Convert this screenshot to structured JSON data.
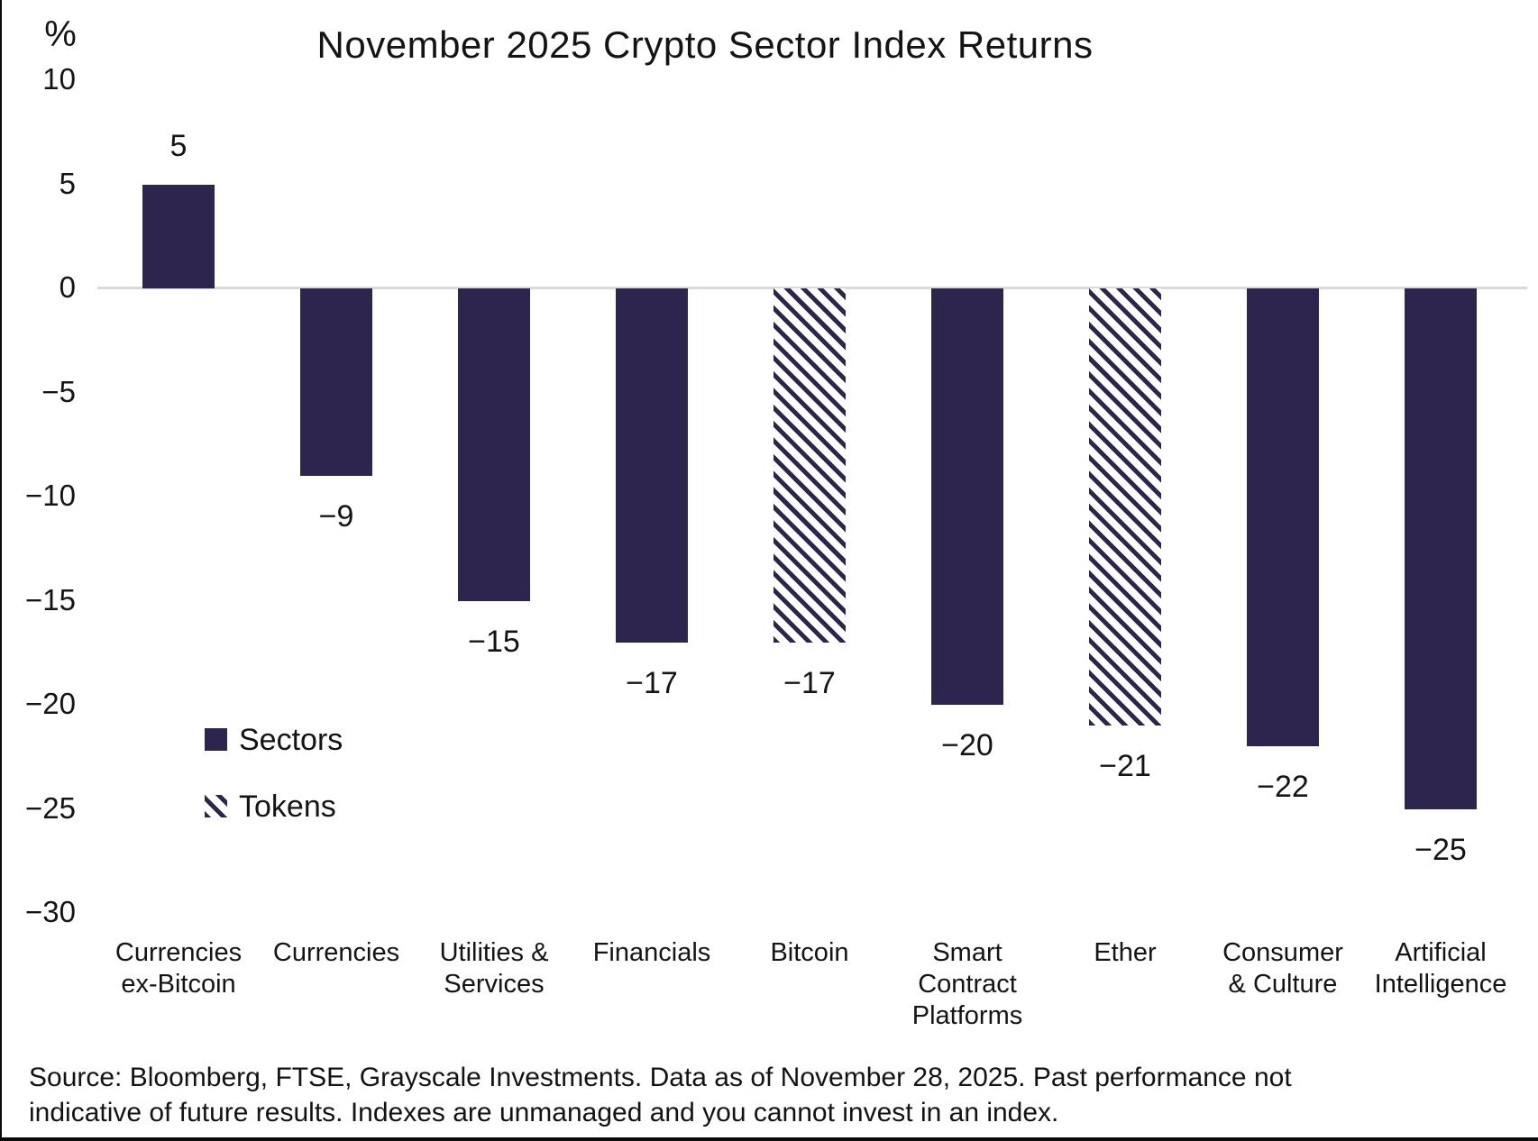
{
  "title": "November 2025 Crypto Sector Index Returns",
  "source": {
    "lines": [
      "Source: Bloomberg, FTSE, Grayscale Investments. Data as of November 28, 2025. Past performance not",
      "indicative of future results. Indexes are unmanaged and you cannot invest in an index."
    ]
  },
  "colors": {
    "bar_navy": "#2d254d",
    "zero_line_gray": "#d9d9d9",
    "text": "#141414",
    "frame_border": "#0a0a0a",
    "background": "#ffffff"
  },
  "chart_data": {
    "type": "bar",
    "title": "November 2025 Crypto Sector Index Returns",
    "xlabel": "",
    "ylabel": "%",
    "ylim": [
      -30,
      10
    ],
    "yticks": [
      10,
      5,
      0,
      -5,
      -10,
      -15,
      -20,
      -25,
      -30
    ],
    "ytick_labels": [
      "10",
      "5",
      "0",
      "−5",
      "−10",
      "−15",
      "−20",
      "−25",
      "−30"
    ],
    "grid": "zero-line-only",
    "legend_position": "inside-left",
    "categories": [
      "Currencies ex-Bitcoin",
      "Currencies",
      "Utilities & Services",
      "Financials",
      "Bitcoin",
      "Smart Contract Platforms",
      "Ether",
      "Consumer & Culture",
      "Artificial Intelligence"
    ],
    "category_lines": [
      [
        "Currencies",
        "ex-Bitcoin"
      ],
      [
        "Currencies"
      ],
      [
        "Utilities &",
        "Services"
      ],
      [
        "Financials"
      ],
      [
        "Bitcoin"
      ],
      [
        "Smart",
        "Contract",
        "Platforms"
      ],
      [
        "Ether"
      ],
      [
        "Consumer",
        "& Culture"
      ],
      [
        "Artificial",
        "Intelligence"
      ]
    ],
    "values": [
      5,
      -9,
      -15,
      -17,
      -17,
      -20,
      -21,
      -22,
      -25
    ],
    "labels": [
      "5",
      "−9",
      "−15",
      "−17",
      "−17",
      "−20",
      "−21",
      "−22",
      "−25"
    ],
    "styles": [
      "solid",
      "solid",
      "solid",
      "solid",
      "hatched",
      "solid",
      "hatched",
      "solid",
      "solid"
    ],
    "legend": [
      {
        "label": "Sectors",
        "style": "solid"
      },
      {
        "label": "Tokens",
        "style": "hatched"
      }
    ]
  }
}
